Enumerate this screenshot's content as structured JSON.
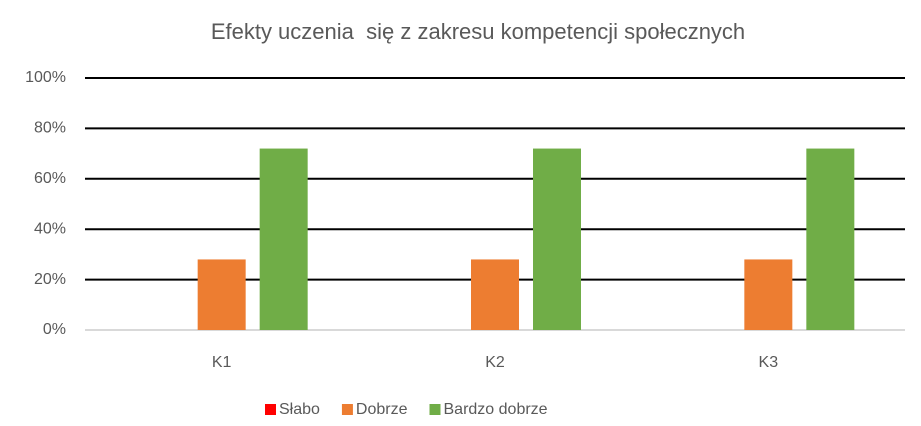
{
  "chart_data": {
    "type": "bar",
    "title": "Efekty uczenia  się z zakresu kompetencji społecznych",
    "categories": [
      "K1",
      "K2",
      "K3"
    ],
    "series": [
      {
        "name": "Słabo",
        "color": "#ff0000",
        "values": [
          0,
          0,
          0
        ]
      },
      {
        "name": "Dobrze",
        "color": "#ed7d31",
        "values": [
          28,
          28,
          28
        ]
      },
      {
        "name": "Bardzo dobrze",
        "color": "#70ad47",
        "values": [
          72,
          72,
          72
        ]
      }
    ],
    "ylim": [
      0,
      100
    ],
    "yticks": [
      {
        "value": 0,
        "label": "0%"
      },
      {
        "value": 20,
        "label": "20%"
      },
      {
        "value": 40,
        "label": "40%"
      },
      {
        "value": 60,
        "label": "60%"
      },
      {
        "value": 80,
        "label": "80%"
      },
      {
        "value": 100,
        "label": "100%"
      }
    ],
    "grid": true,
    "legend": "bottom"
  }
}
